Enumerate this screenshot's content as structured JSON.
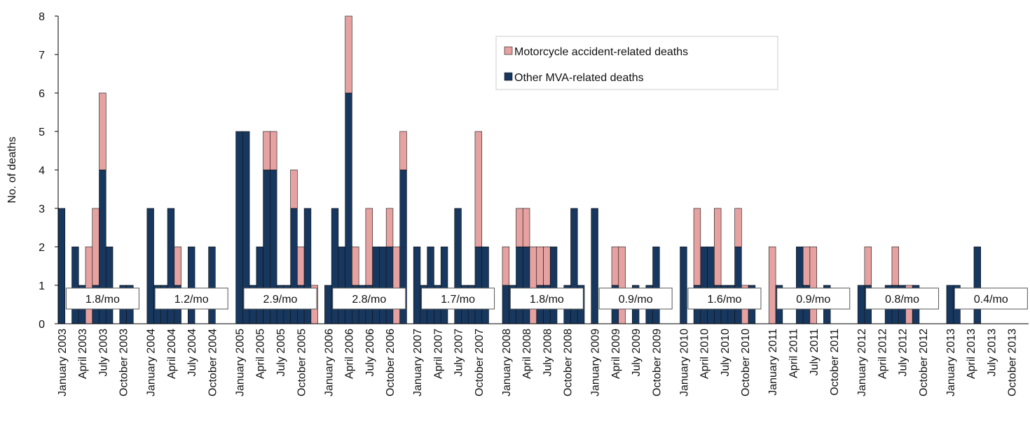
{
  "chart_data": {
    "type": "stacked_bar",
    "y_label": "No. of deaths",
    "ylim": [
      0,
      8
    ],
    "yticks": [
      0,
      1,
      2,
      3,
      4,
      5,
      6,
      7,
      8
    ],
    "categories": [
      "January 2003",
      null,
      null,
      "April 2003",
      null,
      null,
      "July 2003",
      null,
      null,
      "October 2003",
      null,
      null,
      null,
      "January 2004",
      null,
      null,
      "April 2004",
      null,
      null,
      "July 2004",
      null,
      null,
      "October 2004",
      null,
      null,
      null,
      "January 2005",
      null,
      null,
      "April 2005",
      null,
      null,
      "July 2005",
      null,
      null,
      "October 2005",
      null,
      null,
      null,
      "January 2006",
      null,
      null,
      "April 2006",
      null,
      null,
      "July 2006",
      null,
      null,
      "October 2006",
      null,
      null,
      null,
      "January 2007",
      null,
      null,
      "April 2007",
      null,
      null,
      "July 2007",
      null,
      null,
      "October 2007",
      null,
      null,
      null,
      "January 2008",
      null,
      null,
      "April 2008",
      null,
      null,
      "July 2008",
      null,
      null,
      "October 2008",
      null,
      null,
      null,
      "January 2009",
      null,
      null,
      "April 2009",
      null,
      null,
      "July 2009",
      null,
      null,
      "October 2009",
      null,
      null,
      null,
      "January 2010",
      null,
      null,
      "April 2010",
      null,
      null,
      "July 2010",
      null,
      null,
      "October 2010",
      null,
      null,
      null,
      "January 2011",
      null,
      null,
      "April 2011",
      null,
      null,
      "July 2011",
      null,
      null,
      "October 2011",
      null,
      null,
      null,
      "January 2012",
      null,
      null,
      "April 2012",
      null,
      null,
      "July 2012",
      null,
      null,
      "October 2012",
      null,
      null,
      null,
      "January 2013",
      null,
      null,
      "April 2013",
      null,
      null,
      "July 2013",
      null,
      null,
      "October 2013",
      null,
      null
    ],
    "series": [
      {
        "name": "Other MVA-related deaths",
        "color": "#17375e",
        "values": [
          3,
          0,
          2,
          1,
          0,
          1,
          4,
          2,
          0,
          1,
          1,
          0,
          null,
          3,
          1,
          1,
          3,
          1,
          0,
          2,
          0,
          0,
          2,
          0,
          0,
          null,
          5,
          5,
          1,
          2,
          4,
          4,
          1,
          1,
          3,
          1,
          3,
          0,
          null,
          1,
          3,
          2,
          6,
          1,
          1,
          1,
          2,
          2,
          2,
          0,
          4,
          null,
          2,
          1,
          2,
          1,
          2,
          0,
          3,
          1,
          1,
          2,
          2,
          0,
          null,
          1,
          1,
          2,
          2,
          0,
          1,
          1,
          2,
          0,
          1,
          3,
          1,
          null,
          3,
          0,
          0,
          1,
          0,
          0,
          1,
          0,
          1,
          2,
          0,
          0,
          null,
          2,
          0,
          1,
          2,
          2,
          1,
          1,
          1,
          2,
          0,
          1,
          0,
          null,
          0,
          1,
          0,
          0,
          2,
          1,
          0,
          0,
          1,
          0,
          0,
          0,
          null,
          1,
          1,
          0,
          0,
          1,
          1,
          1,
          0,
          1,
          0,
          0,
          0,
          null,
          1,
          1,
          0,
          0,
          2,
          0,
          0,
          0,
          0,
          0,
          0,
          0
        ]
      },
      {
        "name": "Motorcycle accident-related deaths",
        "color": "#e6a1a1",
        "values": [
          0,
          0,
          0,
          0,
          2,
          2,
          2,
          0,
          0,
          0,
          0,
          0,
          null,
          0,
          0,
          0,
          0,
          1,
          0,
          0,
          0,
          0,
          0,
          0,
          0,
          null,
          0,
          0,
          0,
          0,
          1,
          1,
          0,
          0,
          1,
          1,
          0,
          1,
          null,
          0,
          0,
          0,
          2,
          1,
          0,
          2,
          0,
          0,
          1,
          2,
          1,
          null,
          0,
          0,
          0,
          0,
          0,
          0,
          0,
          0,
          0,
          3,
          0,
          0,
          null,
          1,
          0,
          1,
          1,
          2,
          1,
          1,
          0,
          0,
          0,
          0,
          0,
          null,
          0,
          0,
          0,
          1,
          2,
          0,
          0,
          0,
          0,
          0,
          0,
          0,
          null,
          0,
          0,
          2,
          0,
          0,
          2,
          0,
          0,
          1,
          1,
          0,
          0,
          null,
          2,
          0,
          0,
          0,
          0,
          1,
          2,
          0,
          0,
          0,
          0,
          0,
          null,
          0,
          1,
          0,
          0,
          0,
          1,
          0,
          1,
          0,
          0,
          0,
          0,
          null,
          0,
          0,
          0,
          0,
          0,
          0,
          0,
          0,
          0,
          0,
          0,
          0
        ]
      }
    ],
    "annotations": [
      "1.8/mo",
      "1.2/mo",
      "2.9/mo",
      "2.8/mo",
      "1.7/mo",
      "1.8/mo",
      "0.9/mo",
      "1.6/mo",
      "0.9/mo",
      "0.8/mo",
      "0.4/mo"
    ]
  }
}
